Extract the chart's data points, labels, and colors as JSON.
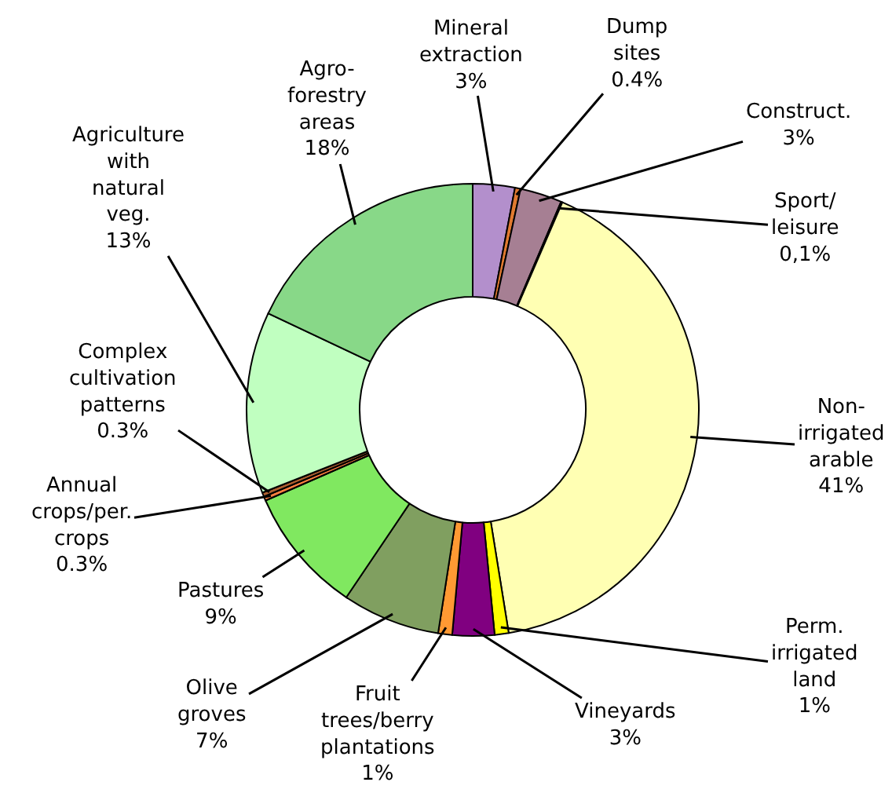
{
  "chart_data": {
    "type": "donut",
    "categories": [
      "Mineral\nextraction",
      "Dump\nsites",
      "Construct.",
      "Sport/\nleisure",
      "Non-\nirrigated\narable",
      "Perm.\nirrigated\nland",
      "Vineyards",
      "Fruit\ntrees/berry\nplantations",
      "Olive\ngroves",
      "Pastures",
      "Annual\ncrops/per.\ncrops",
      "Complex\ncultivation\npatterns",
      "Agriculture\nwith\nnatural\nveg.",
      "Agro-\nforestry\nareas"
    ],
    "values": [
      3,
      0.4,
      3,
      0.1,
      41,
      1,
      3,
      1,
      7,
      9,
      0.3,
      0.3,
      13,
      18
    ],
    "value_labels": [
      "3%",
      "0.4%",
      "3%",
      "0,1%",
      "41%",
      "1%",
      "3%",
      "1%",
      "7%",
      "9%",
      "0.3%",
      "0.3%",
      "13%",
      "18%"
    ],
    "colors": [
      "#b38fcc",
      "#e07a30",
      "#a67f93",
      "#c0c0c0",
      "#ffffb3",
      "#ffff00",
      "#800080",
      "#ff9933",
      "#809f60",
      "#80e860",
      "#ff8040",
      "#b06030",
      "#c0ffc0",
      "#88d888"
    ],
    "legend": false
  }
}
